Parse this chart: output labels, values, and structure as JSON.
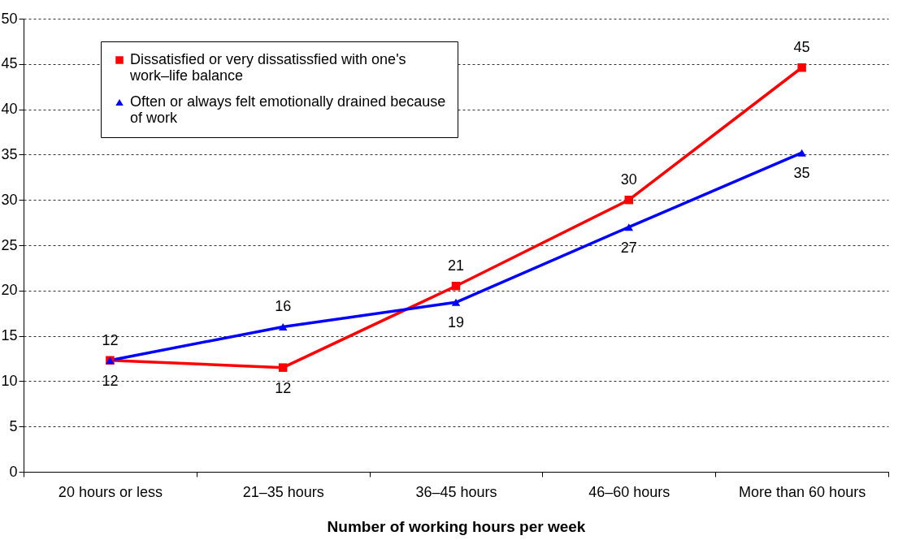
{
  "chart_data": {
    "type": "line",
    "xlabel": "Number of working hours per week",
    "categories": [
      "20 hours or less",
      "21–35 hours",
      "36–45 hours",
      "46–60 hours",
      "More than 60 hours"
    ],
    "series": [
      {
        "name": "Dissatisfied or very dissatissfied with one's work–life balance",
        "color": "#ff0000",
        "marker": "square",
        "values": [
          12.3,
          11.5,
          20.5,
          30,
          44.6
        ],
        "value_labels": [
          "12",
          "12",
          "21",
          "30",
          "45"
        ]
      },
      {
        "name": "Often or always felt emotionally drained because of work",
        "color": "#0000ff",
        "marker": "triangle",
        "values": [
          12.3,
          16,
          18.7,
          27,
          35.2
        ],
        "value_labels": [
          "12",
          "16",
          "19",
          "27",
          "35"
        ]
      }
    ],
    "ylim": [
      0,
      50
    ],
    "yticks": [
      0,
      5,
      10,
      15,
      20,
      25,
      30,
      35,
      40,
      45,
      50
    ],
    "grid": "y",
    "legend": "top left"
  }
}
